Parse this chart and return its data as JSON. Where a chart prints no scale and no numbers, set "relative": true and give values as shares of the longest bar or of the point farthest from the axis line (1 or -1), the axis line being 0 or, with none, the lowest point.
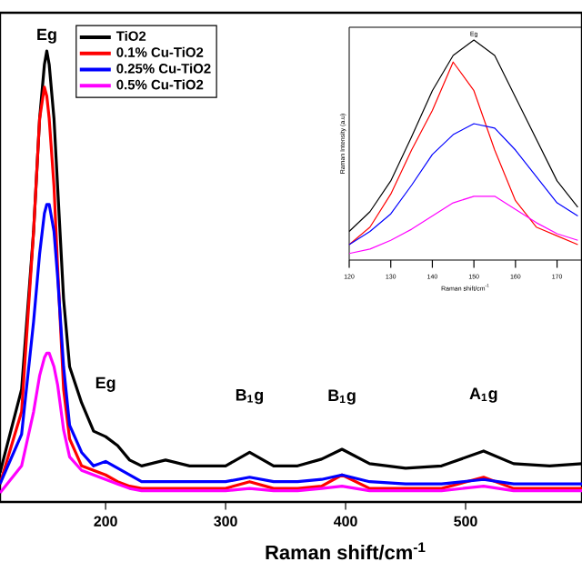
{
  "chart_data": [
    {
      "type": "line",
      "relative": true,
      "xlabel": "Raman shift/cm$^{-1}$",
      "xlim": [
        112,
        597
      ],
      "xticks": [
        200,
        300,
        400,
        500
      ],
      "legend": "top left",
      "grid": false,
      "x": [
        112,
        130,
        140,
        145,
        149,
        151,
        153,
        157,
        160,
        165,
        170,
        180,
        190,
        200,
        210,
        220,
        230,
        250,
        270,
        300,
        320,
        340,
        360,
        380,
        397,
        420,
        450,
        480,
        515,
        540,
        570,
        597
      ],
      "series": [
        {
          "name": "TiO2",
          "color": "#000000",
          "values": [
            0.065,
            0.25,
            0.6,
            0.85,
            0.97,
            1.0,
            0.97,
            0.85,
            0.7,
            0.45,
            0.3,
            0.22,
            0.157,
            0.145,
            0.125,
            0.093,
            0.08,
            0.093,
            0.08,
            0.08,
            0.11,
            0.08,
            0.08,
            0.095,
            0.117,
            0.085,
            0.075,
            0.08,
            0.113,
            0.085,
            0.08,
            0.085
          ]
        },
        {
          "name": "0.1% Cu-TiO2",
          "color": "#ff0000",
          "values": [
            0.04,
            0.2,
            0.6,
            0.85,
            0.92,
            0.9,
            0.85,
            0.7,
            0.52,
            0.25,
            0.14,
            0.08,
            0.07,
            0.06,
            0.045,
            0.035,
            0.03,
            0.03,
            0.03,
            0.03,
            0.045,
            0.03,
            0.03,
            0.035,
            0.06,
            0.03,
            0.03,
            0.03,
            0.055,
            0.03,
            0.03,
            0.03
          ]
        },
        {
          "name": "0.25% Cu-TiO2",
          "color": "#0000ff",
          "values": [
            0.04,
            0.15,
            0.4,
            0.55,
            0.64,
            0.66,
            0.66,
            0.6,
            0.5,
            0.3,
            0.17,
            0.11,
            0.08,
            0.09,
            0.075,
            0.06,
            0.045,
            0.045,
            0.045,
            0.045,
            0.055,
            0.045,
            0.045,
            0.05,
            0.06,
            0.045,
            0.04,
            0.04,
            0.05,
            0.04,
            0.04,
            0.04
          ]
        },
        {
          "name": "0.5% Cu-TiO2",
          "color": "#ff00ff",
          "values": [
            0.02,
            0.08,
            0.2,
            0.28,
            0.32,
            0.33,
            0.33,
            0.3,
            0.26,
            0.16,
            0.1,
            0.07,
            0.06,
            0.05,
            0.04,
            0.03,
            0.025,
            0.025,
            0.025,
            0.025,
            0.03,
            0.025,
            0.025,
            0.03,
            0.035,
            0.025,
            0.025,
            0.025,
            0.035,
            0.025,
            0.025,
            0.025
          ]
        }
      ],
      "annotations": [
        {
          "text": "Eg",
          "x": 151,
          "y": 1.0
        },
        {
          "text": "Eg",
          "x": 200,
          "y": 0.145
        },
        {
          "text": "B$_{1}$g",
          "x": 320,
          "y": 0.11
        },
        {
          "text": "B$_{1}$g",
          "x": 397,
          "y": 0.117
        },
        {
          "text": "A$_{1}$g",
          "x": 515,
          "y": 0.113
        }
      ]
    },
    {
      "type": "line",
      "relative": true,
      "xlabel": "Raman shift/cm$^{-1}$",
      "ylabel": "Raman Intensity (a.u)",
      "xlim": [
        120,
        176
      ],
      "xticks": [
        120,
        130,
        140,
        150,
        160,
        170
      ],
      "grid": false,
      "x": [
        120,
        125,
        130,
        135,
        140,
        145,
        150,
        155,
        160,
        165,
        170,
        175
      ],
      "series": [
        {
          "color": "#000000",
          "values": [
            0.13,
            0.22,
            0.36,
            0.56,
            0.77,
            0.93,
            1.0,
            0.93,
            0.74,
            0.55,
            0.36,
            0.24
          ]
        },
        {
          "color": "#ff0000",
          "values": [
            0.07,
            0.15,
            0.3,
            0.5,
            0.68,
            0.9,
            0.77,
            0.5,
            0.27,
            0.15,
            0.11,
            0.07
          ]
        },
        {
          "color": "#0000ff",
          "values": [
            0.07,
            0.13,
            0.21,
            0.34,
            0.48,
            0.57,
            0.62,
            0.6,
            0.5,
            0.38,
            0.26,
            0.2
          ]
        },
        {
          "color": "#ff00ff",
          "values": [
            0.03,
            0.05,
            0.09,
            0.14,
            0.2,
            0.26,
            0.29,
            0.29,
            0.23,
            0.17,
            0.12,
            0.09
          ]
        }
      ],
      "annotations": [
        {
          "text": "Eg",
          "x": 150,
          "y": 1.0
        }
      ]
    }
  ]
}
